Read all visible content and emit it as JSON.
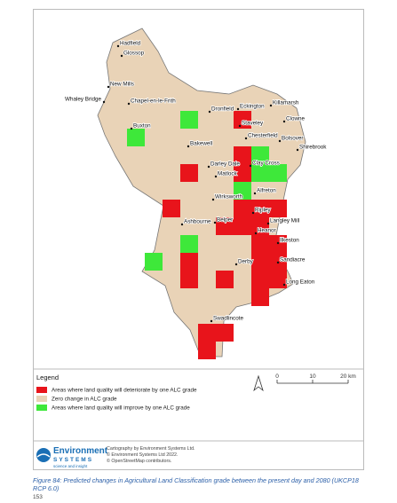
{
  "map": {
    "towns": [
      "Hadfield",
      "Glossop",
      "New Mills",
      "Whaley Bridge",
      "Chapel-en-le-Frith",
      "Buxton",
      "Bakewell",
      "Dronfield",
      "Eckington",
      "Killamarsh",
      "Staveley",
      "Clowne",
      "Chesterfield",
      "Bolsover",
      "Shirebrook",
      "Darley Dale",
      "Clay Cross",
      "Matlock",
      "Alfreton",
      "Wirksworth",
      "Ripley",
      "Belper",
      "Ashbourne",
      "Langley Mill",
      "Heanor",
      "Ilkeston",
      "Derby",
      "Sandiacre",
      "Long Eaton",
      "Swadlincote"
    ]
  },
  "legend": {
    "title": "Legend",
    "items": [
      {
        "label": "Areas where land quality will deteriorate by one ALC grade",
        "color": "#e8141b"
      },
      {
        "label": "Zero change in ALC grade",
        "color": "#e9d3b7"
      },
      {
        "label": "Areas where land quality will improve by one ALC grade",
        "color": "#3ee83a"
      }
    ]
  },
  "scale_bar": {
    "labels": [
      "0",
      "10",
      "20 km"
    ]
  },
  "logo": {
    "name": "Environment",
    "sub": "SYSTEMS",
    "tagline": "science and insight"
  },
  "credits": [
    "Cartography by Environment Systems Ltd.",
    "© Environment Systems Ltd 2022.",
    "© OpenStreetMap contributors."
  ],
  "caption": "Figure 84: Predicted changes in Agricultural Land Classification grade between the present day and 2080 (UKCP18 RCP 6.0)",
  "page_number": "153"
}
